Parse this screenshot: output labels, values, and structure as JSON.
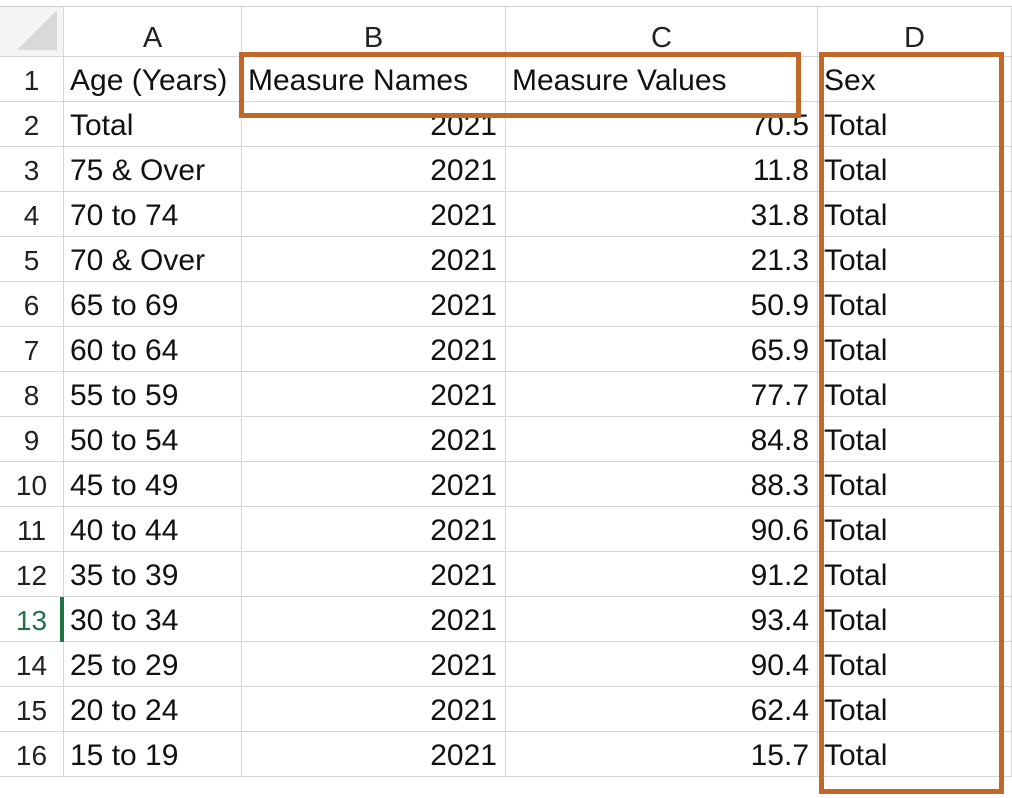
{
  "columns": [
    "A",
    "B",
    "C",
    "D"
  ],
  "header_row": {
    "row_number": "1",
    "cells": [
      "Age (Years)",
      "Measure Names",
      "Measure Values",
      "Sex"
    ]
  },
  "rows": [
    {
      "n": "2",
      "age": "Total",
      "measure": "2021",
      "value": "70.5",
      "sex": "Total"
    },
    {
      "n": "3",
      "age": "75 & Over",
      "measure": "2021",
      "value": "11.8",
      "sex": "Total"
    },
    {
      "n": "4",
      "age": "70 to 74",
      "measure": "2021",
      "value": "31.8",
      "sex": "Total"
    },
    {
      "n": "5",
      "age": "70 & Over",
      "measure": "2021",
      "value": "21.3",
      "sex": "Total"
    },
    {
      "n": "6",
      "age": "65 to 69",
      "measure": "2021",
      "value": "50.9",
      "sex": "Total"
    },
    {
      "n": "7",
      "age": "60 to 64",
      "measure": "2021",
      "value": "65.9",
      "sex": "Total"
    },
    {
      "n": "8",
      "age": "55 to 59",
      "measure": "2021",
      "value": "77.7",
      "sex": "Total"
    },
    {
      "n": "9",
      "age": "50 to 54",
      "measure": "2021",
      "value": "84.8",
      "sex": "Total"
    },
    {
      "n": "10",
      "age": "45 to 49",
      "measure": "2021",
      "value": "88.3",
      "sex": "Total"
    },
    {
      "n": "11",
      "age": "40 to 44",
      "measure": "2021",
      "value": "90.6",
      "sex": "Total"
    },
    {
      "n": "12",
      "age": "35 to 39",
      "measure": "2021",
      "value": "91.2",
      "sex": "Total"
    },
    {
      "n": "13",
      "age": "30 to 34",
      "measure": "2021",
      "value": "93.4",
      "sex": "Total"
    },
    {
      "n": "14",
      "age": "25 to 29",
      "measure": "2021",
      "value": "90.4",
      "sex": "Total"
    },
    {
      "n": "15",
      "age": "20 to 24",
      "measure": "2021",
      "value": "62.4",
      "sex": "Total"
    },
    {
      "n": "16",
      "age": "15 to 19",
      "measure": "2021",
      "value": "15.7",
      "sex": "Total"
    }
  ],
  "active_row": "13",
  "colors": {
    "highlight_box": "#c0672a",
    "active_row_indicator": "#217346",
    "gridline": "#d6d6d6"
  }
}
